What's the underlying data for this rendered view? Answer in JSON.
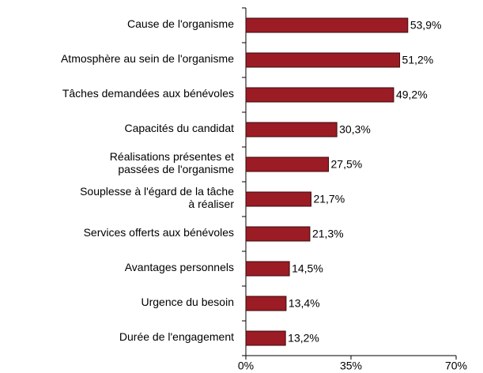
{
  "chart_data": {
    "type": "bar",
    "orientation": "horizontal",
    "categories": [
      "Cause de l'organisme",
      "Atmosphère au sein de l'organisme",
      "Tâches demandées aux bénévoles",
      "Capacités du candidat",
      "Réalisations présentes et\npassées de l'organisme",
      "Souplesse à l'égard de la tâche\nà réaliser",
      "Services offerts aux bénévoles",
      "Avantages personnels",
      "Urgence du besoin",
      "Durée de l'engagement"
    ],
    "values": [
      53.9,
      51.2,
      49.2,
      30.3,
      27.5,
      21.7,
      21.3,
      14.5,
      13.4,
      13.2
    ],
    "value_labels": [
      "53,9%",
      "51,2%",
      "49,2%",
      "30,3%",
      "27,5%",
      "21,7%",
      "21,3%",
      "14,5%",
      "13,4%",
      "13,2%"
    ],
    "color": "#9b1c24",
    "xlim": [
      0,
      70
    ],
    "xticks": [
      {
        "value": 0,
        "label": "0%"
      },
      {
        "value": 35,
        "label": "35%"
      },
      {
        "value": 70,
        "label": "70%"
      }
    ]
  }
}
